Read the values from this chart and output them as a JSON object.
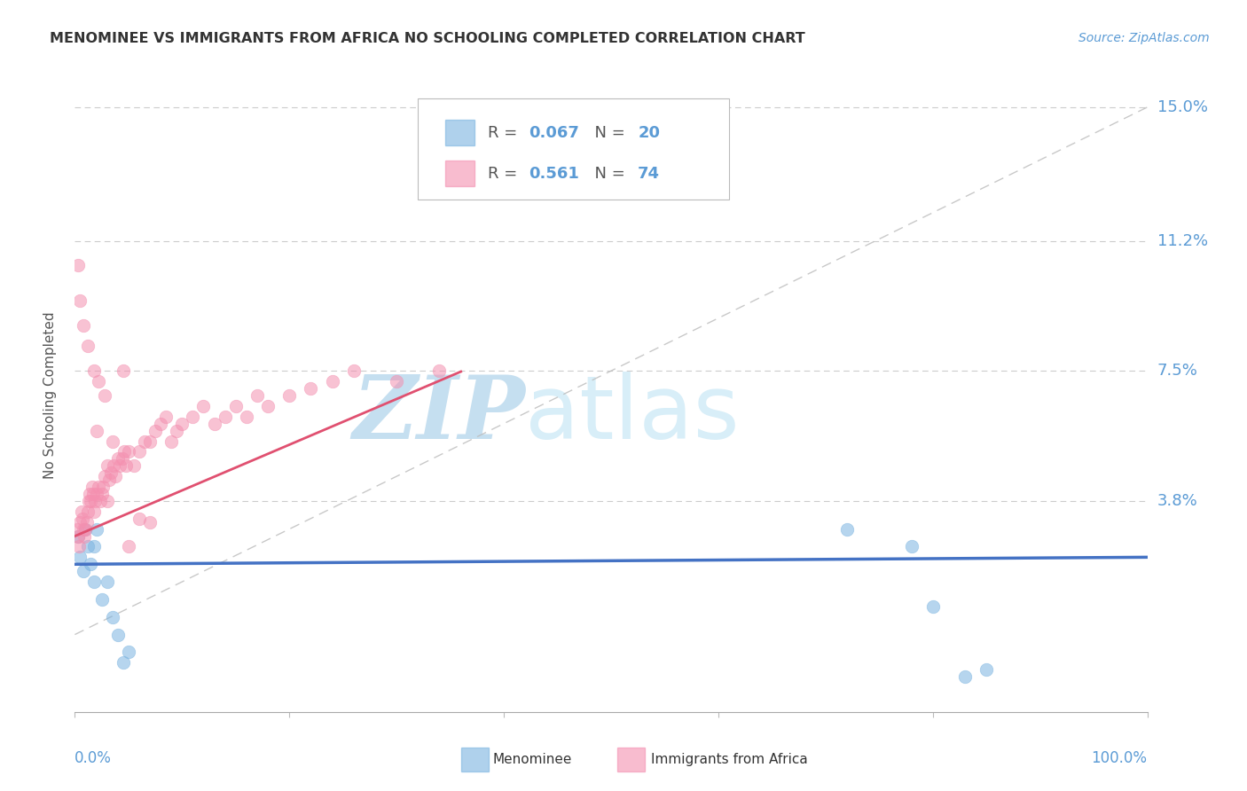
{
  "title": "MENOMINEE VS IMMIGRANTS FROM AFRICA NO SCHOOLING COMPLETED CORRELATION CHART",
  "source_text": "Source: ZipAtlas.com",
  "ylabel": "No Schooling Completed",
  "ytick_vals": [
    0.038,
    0.075,
    0.112,
    0.15
  ],
  "ytick_labels": [
    "3.8%",
    "7.5%",
    "11.2%",
    "15.0%"
  ],
  "xlim": [
    0.0,
    1.0
  ],
  "ylim": [
    -0.022,
    0.158
  ],
  "blue_color": "#7ab3e0",
  "pink_color": "#f490b0",
  "trend_blue_color": "#4472c4",
  "trend_pink_color": "#e05070",
  "diag_color": "#bbbbbb",
  "watermark_zip": "ZIP",
  "watermark_atlas": "atlas",
  "watermark_color_zip": "#c5dff0",
  "watermark_color_atlas": "#d8eef8",
  "background_color": "#ffffff",
  "grid_color": "#cccccc",
  "title_color": "#333333",
  "source_color": "#5b9bd5",
  "axis_label_color": "#5b9bd5",
  "legend_r1": "R = ",
  "legend_v1": "0.067",
  "legend_n1": "  N = ",
  "legend_nv1": "20",
  "legend_r2": "R =  ",
  "legend_v2": "0.561",
  "legend_n2": "  N = ",
  "legend_nv2": "74",
  "bottom_label1": "Menominee",
  "bottom_label2": "Immigrants from Africa"
}
